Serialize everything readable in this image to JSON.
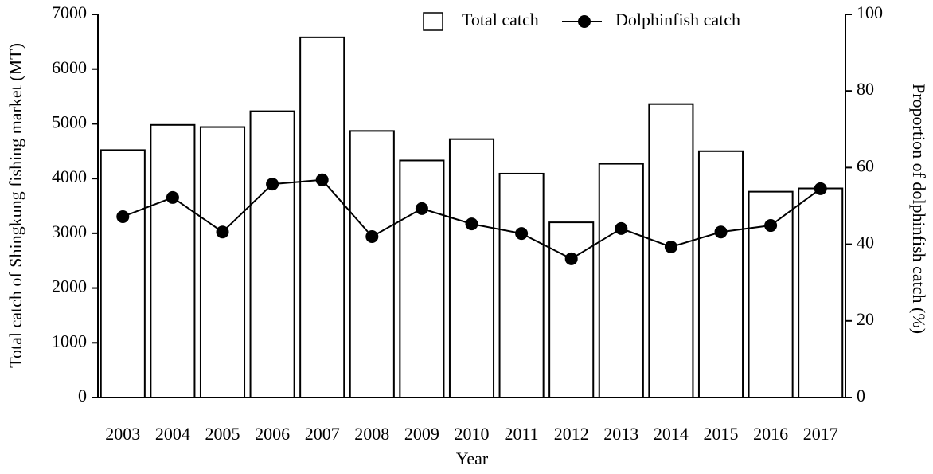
{
  "chart_data": {
    "type": "bar_line",
    "xlabel": "Year",
    "ylabel": "Total catch of Shingkung fishing market (MT)",
    "y2label": "Proportion of dolphinfish catch (%)",
    "categories": [
      "2003",
      "2004",
      "2005",
      "2006",
      "2007",
      "2008",
      "2009",
      "2010",
      "2011",
      "2012",
      "2013",
      "2014",
      "2015",
      "2016",
      "2017"
    ],
    "series": [
      {
        "name": "Total catch",
        "type": "bar",
        "color": "#ffffff",
        "values": [
          4520,
          4980,
          4940,
          5230,
          6580,
          4870,
          4330,
          4720,
          4090,
          3200,
          4270,
          5360,
          4500,
          3760,
          3820
        ]
      },
      {
        "name": "Dolphinfish catch",
        "type": "line",
        "axis": "y2",
        "color": "#000000",
        "values": [
          47.2,
          52.2,
          43.2,
          55.7,
          56.8,
          42.0,
          49.3,
          45.3,
          42.8,
          36.2,
          44.1,
          39.3,
          43.2,
          44.9,
          54.5
        ]
      }
    ],
    "ylim": [
      0,
      7000
    ],
    "yticks": [
      0,
      1000,
      2000,
      3000,
      4000,
      5000,
      6000,
      7000
    ],
    "y2lim": [
      0,
      100
    ],
    "y2ticks": [
      0,
      20,
      40,
      60,
      80,
      100
    ],
    "legend": "top-right"
  }
}
